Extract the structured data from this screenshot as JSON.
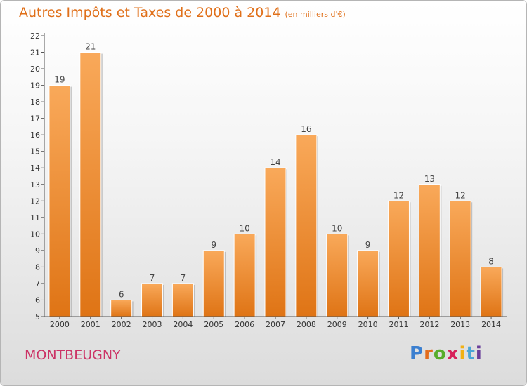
{
  "header": {
    "title": "Autres Impôts et Taxes de 2000 à 2014",
    "unit": "(en milliers d'€)"
  },
  "footer": {
    "place": "MONTBEUGNY",
    "brand_letters": [
      "P",
      "r",
      "o",
      "x",
      "i",
      "t",
      "i"
    ]
  },
  "colors": {
    "title": "#e0701a",
    "place": "#cc3366",
    "bar_light": "#f9a95a",
    "bar_dark": "#df7415",
    "brand": [
      "#3b7fd0",
      "#e36c1c",
      "#57ad2b",
      "#d7205a",
      "#f1b114",
      "#4aa6d6",
      "#6a3f9a"
    ]
  },
  "chart_data": {
    "type": "bar",
    "categories": [
      "2000",
      "2001",
      "2002",
      "2003",
      "2004",
      "2005",
      "2006",
      "2007",
      "2008",
      "2009",
      "2010",
      "2011",
      "2012",
      "2013",
      "2014"
    ],
    "values": [
      19,
      21,
      6,
      7,
      7,
      9,
      10,
      14,
      16,
      10,
      9,
      12,
      13,
      12,
      8
    ],
    "title": "Autres Impôts et Taxes de 2000 à 2014",
    "ylim": [
      5,
      22
    ],
    "yticks": [
      5,
      6,
      7,
      8,
      9,
      10,
      11,
      12,
      13,
      14,
      15,
      16,
      17,
      18,
      19,
      20,
      21,
      22
    ],
    "grid": false,
    "data_labels": true
  }
}
